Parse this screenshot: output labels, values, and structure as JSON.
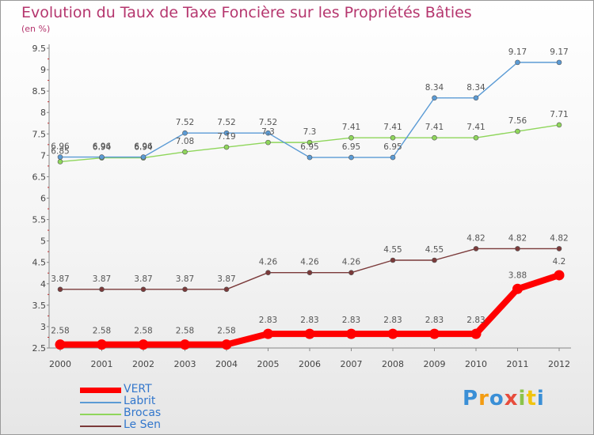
{
  "title": "Evolution du Taux de Taxe Foncière sur les Propriétés Bâties",
  "unit": "(en %)",
  "logo": {
    "text": "Proxiti",
    "colors": [
      "#3a8fd6",
      "#f39c12",
      "#3a8fd6",
      "#e74c3c",
      "#8bc34a",
      "#f1c40f",
      "#3a8fd6"
    ]
  },
  "chart_data": {
    "type": "line",
    "x": [
      "2000",
      "2001",
      "2002",
      "2003",
      "2004",
      "2005",
      "2006",
      "2007",
      "2008",
      "2009",
      "2010",
      "2011",
      "2012"
    ],
    "ylim": [
      2.5,
      9.5
    ],
    "yticks": [
      "2.5",
      "3",
      "3.5",
      "4",
      "4.5",
      "5",
      "5.5",
      "6",
      "6.5",
      "7",
      "7.5",
      "8",
      "8.5",
      "9",
      "9.5"
    ],
    "grid": false,
    "legend_position": "bottom-left",
    "series": [
      {
        "name": "VERT",
        "color": "#ff0000",
        "values": [
          2.58,
          2.58,
          2.58,
          2.58,
          2.58,
          2.83,
          2.83,
          2.83,
          2.83,
          2.83,
          2.83,
          3.88,
          4.2
        ],
        "labels": [
          "2.58",
          "2.58",
          "2.58",
          "2.58",
          "2.58",
          "2.83",
          "2.83",
          "2.83",
          "2.83",
          "2.83",
          "2.83",
          "3.88",
          "4.2"
        ]
      },
      {
        "name": "Labrit",
        "color": "#5b9bd5",
        "values": [
          6.96,
          6.96,
          6.96,
          7.52,
          7.52,
          7.52,
          6.95,
          6.95,
          6.95,
          8.34,
          8.34,
          9.17,
          9.17
        ],
        "labels": [
          "6.96",
          "6.96",
          "6.96",
          "7.52",
          "7.52",
          "7.52",
          "6.95",
          "6.95",
          "6.95",
          "8.34",
          "8.34",
          "9.17",
          "9.17"
        ]
      },
      {
        "name": "Brocas",
        "color": "#8fd65b",
        "values": [
          6.85,
          6.94,
          6.94,
          7.08,
          7.19,
          7.3,
          7.3,
          7.41,
          7.41,
          7.41,
          7.41,
          7.56,
          7.71
        ],
        "labels": [
          "6.85",
          "6.94",
          "6.94",
          "7.08",
          "7.19",
          "7.3",
          "7.3",
          "7.41",
          "7.41",
          "7.41",
          "7.41",
          "7.56",
          "7.71"
        ]
      },
      {
        "name": "Le Sen",
        "color": "#7b3a3a",
        "values": [
          3.87,
          3.87,
          3.87,
          3.87,
          3.87,
          4.26,
          4.26,
          4.26,
          4.55,
          4.55,
          4.82,
          4.82,
          4.82
        ],
        "labels": [
          "3.87",
          "3.87",
          "3.87",
          "3.87",
          "3.87",
          "4.26",
          "4.26",
          "4.26",
          "4.55",
          "4.55",
          "4.82",
          "4.82",
          "4.82"
        ]
      }
    ]
  }
}
